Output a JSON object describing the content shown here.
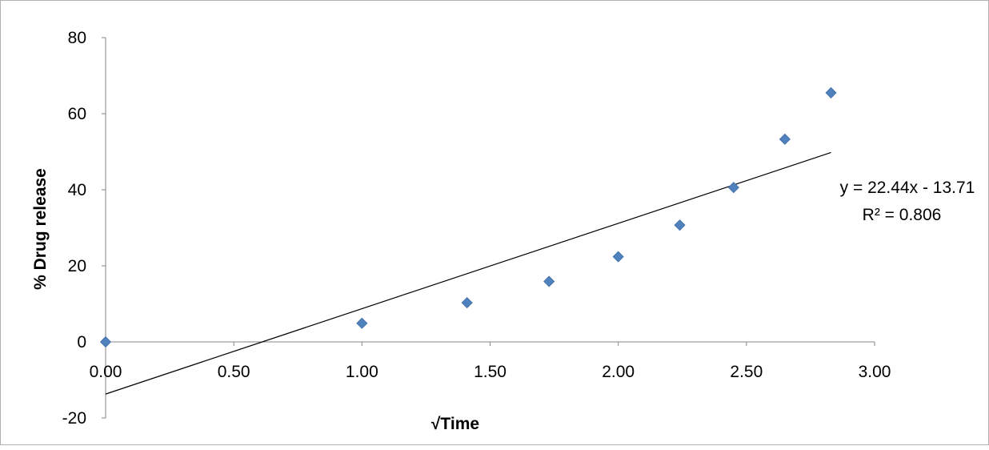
{
  "chart_data": {
    "type": "scatter",
    "title": "",
    "xlabel": "√Time",
    "ylabel": "% Drug release",
    "xlim": [
      0,
      3
    ],
    "ylim": [
      -20,
      80
    ],
    "x_ticks": [
      "0.00",
      "0.50",
      "1.00",
      "1.50",
      "2.00",
      "2.50",
      "3.00"
    ],
    "y_ticks": [
      "-20",
      "0",
      "20",
      "40",
      "60",
      "80"
    ],
    "grid": false,
    "series": [
      {
        "x": [
          0.0,
          1.0,
          1.41,
          1.73,
          2.0,
          2.24,
          2.45,
          2.65,
          2.83
        ],
        "y": [
          0.0,
          4.9,
          10.3,
          15.9,
          22.4,
          30.7,
          40.6,
          53.3,
          65.5
        ],
        "marker": "diamond",
        "color": "#4f81bd"
      }
    ],
    "trendline": {
      "type": "linear",
      "slope": 22.44,
      "intercept": -13.71,
      "x_range": [
        0,
        2.83
      ],
      "equation": "y = 22.44x - 13.71",
      "r_squared": "R² = 0.806",
      "color": "#000000"
    }
  }
}
